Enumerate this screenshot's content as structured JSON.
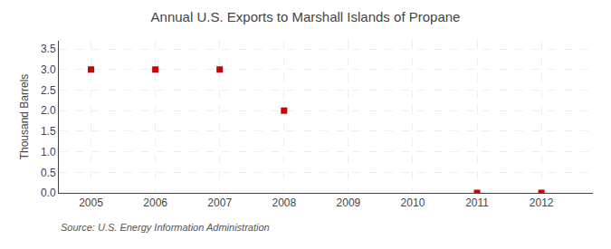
{
  "chart_data": {
    "type": "scatter",
    "title": "Annual U.S. Exports to Marshall Islands of Propane",
    "ylabel": "Thousand Barrels",
    "annotations": [
      "Source: U.S. Energy Information Administration"
    ],
    "x": [
      2005,
      2006,
      2007,
      2008,
      2011,
      2012
    ],
    "values": [
      3.0,
      3.0,
      3.0,
      2.0,
      0.0,
      0.0
    ],
    "color": "#cc0000",
    "marker": "square",
    "xlim": [
      2004.5,
      2012.8
    ],
    "ylim": [
      0.0,
      3.7
    ],
    "xticks": [
      2005,
      2006,
      2007,
      2008,
      2009,
      2010,
      2011,
      2012
    ],
    "yticks": [
      {
        "value": 0.0,
        "label": "0.0"
      },
      0.5,
      {
        "value": 1.0,
        "label": "1.0"
      },
      1.5,
      {
        "value": 2.0,
        "label": "2.0"
      },
      2.5,
      {
        "value": 3.0,
        "label": "3.0"
      },
      3.5
    ],
    "grid": true
  }
}
